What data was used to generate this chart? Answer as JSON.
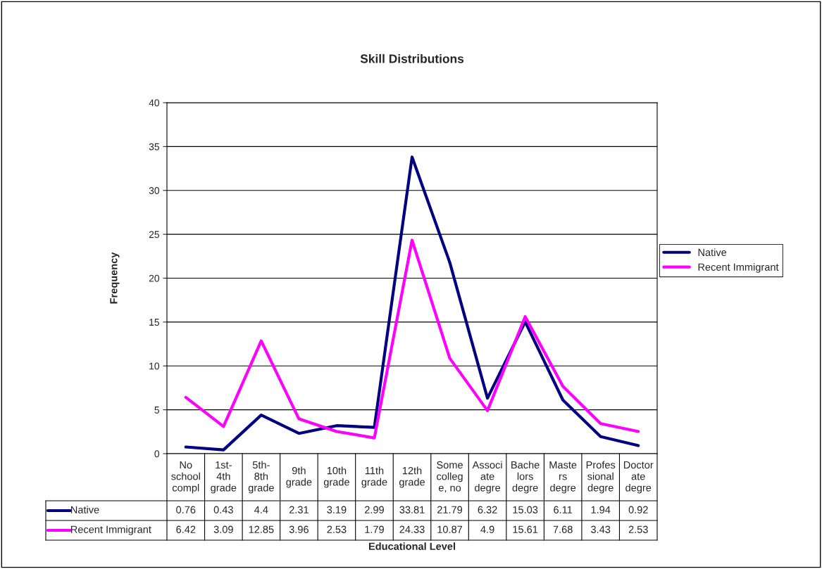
{
  "chart_data": {
    "type": "line",
    "title": "Skill Distributions",
    "xlabel": "Educational Level",
    "ylabel": "Frequency",
    "categories": [
      "No\nschool\ncompl",
      "1st-\n4th\ngrade",
      "5th-\n8th\ngrade",
      "9th\ngrade",
      "10th\ngrade",
      "11th\ngrade",
      "12th\ngrade",
      "Some\ncolleg\ne, no",
      "Associ\nate\ndegre",
      "Bache\nlors\ndegre",
      "Maste\nrs\ndegre",
      "Profes\nsional\ndegre",
      "Doctor\nate\ndegre"
    ],
    "series": [
      {
        "name": "Native",
        "color": "#000080",
        "values": [
          0.76,
          0.43,
          4.4,
          2.31,
          3.19,
          2.99,
          33.81,
          21.79,
          6.32,
          15.03,
          6.11,
          1.94,
          0.92
        ]
      },
      {
        "name": "Recent Immigrant",
        "color": "#ff00ff",
        "values": [
          6.42,
          3.09,
          12.85,
          3.96,
          2.53,
          1.79,
          24.33,
          10.87,
          4.9,
          15.61,
          7.68,
          3.43,
          2.53
        ]
      }
    ],
    "ylim": [
      0,
      40
    ],
    "yticks": [
      0,
      5,
      10,
      15,
      20,
      25,
      30,
      35,
      40
    ],
    "grid": "y",
    "legend": "right",
    "data_labels": true,
    "marker": "none",
    "line_style": "solid"
  }
}
